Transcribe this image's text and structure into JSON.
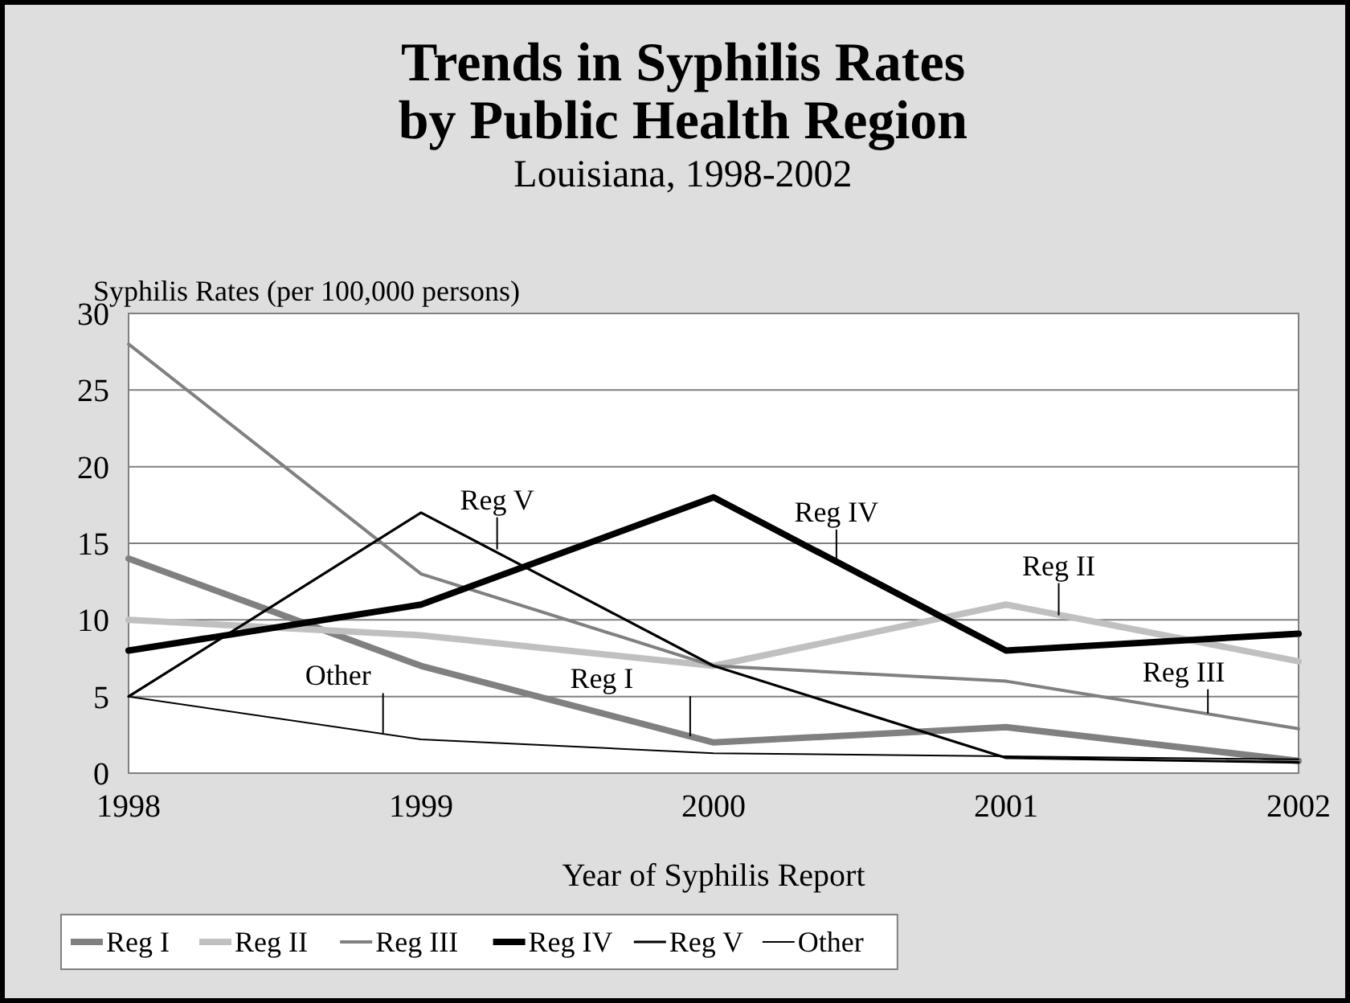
{
  "chart_data": {
    "type": "line",
    "title": "Trends in Syphilis Rates by Public Health Region",
    "subtitle": "Louisiana, 1998-2002",
    "xlabel": "Year of Syphilis Report",
    "ylabel": "Syphilis Rates (per 100,000 persons)",
    "x": [
      1998,
      1999,
      2000,
      2001,
      2002
    ],
    "xlim": [
      1998,
      2002
    ],
    "xticks": [
      1998,
      1999,
      2000,
      2001,
      2002
    ],
    "ylim": [
      0,
      30
    ],
    "yticks": [
      0,
      5,
      10,
      15,
      20,
      25,
      30
    ],
    "grid": "y",
    "legend": "bottom",
    "marker": "none",
    "line_style": "solid",
    "series": [
      {
        "name": "Reg I",
        "color": "#808080",
        "values": [
          14,
          7,
          2,
          3,
          0.8
        ]
      },
      {
        "name": "Reg II",
        "color": "#c0c0c0",
        "values": [
          10,
          9,
          7,
          11,
          7.3
        ]
      },
      {
        "name": "Reg III",
        "color": "#808080",
        "values": [
          28,
          13,
          7,
          6,
          2.9
        ]
      },
      {
        "name": "Reg IV",
        "color": "#000000",
        "values": [
          8,
          11,
          18,
          8,
          9.1
        ]
      },
      {
        "name": "Reg V",
        "color": "#000000",
        "values": [
          5,
          17,
          7,
          1,
          0.7
        ]
      },
      {
        "name": "Other",
        "color": "#000000",
        "values": [
          5,
          2.2,
          1.3,
          1.1,
          0.9
        ]
      }
    ],
    "annotations": [
      {
        "text": "Reg V",
        "x": 1999.26,
        "y": 14.6
      },
      {
        "text": "Reg IV",
        "x": 2000.42,
        "y": 13.8
      },
      {
        "text": "Reg II",
        "x": 2001.18,
        "y": 10.3
      },
      {
        "text": "Reg III",
        "x": 2001.69,
        "y": 3.9
      },
      {
        "text": "Reg I",
        "x": 1999.92,
        "y": 2.4
      },
      {
        "text": "Other",
        "x": 1998.87,
        "y": 2.6
      }
    ]
  }
}
